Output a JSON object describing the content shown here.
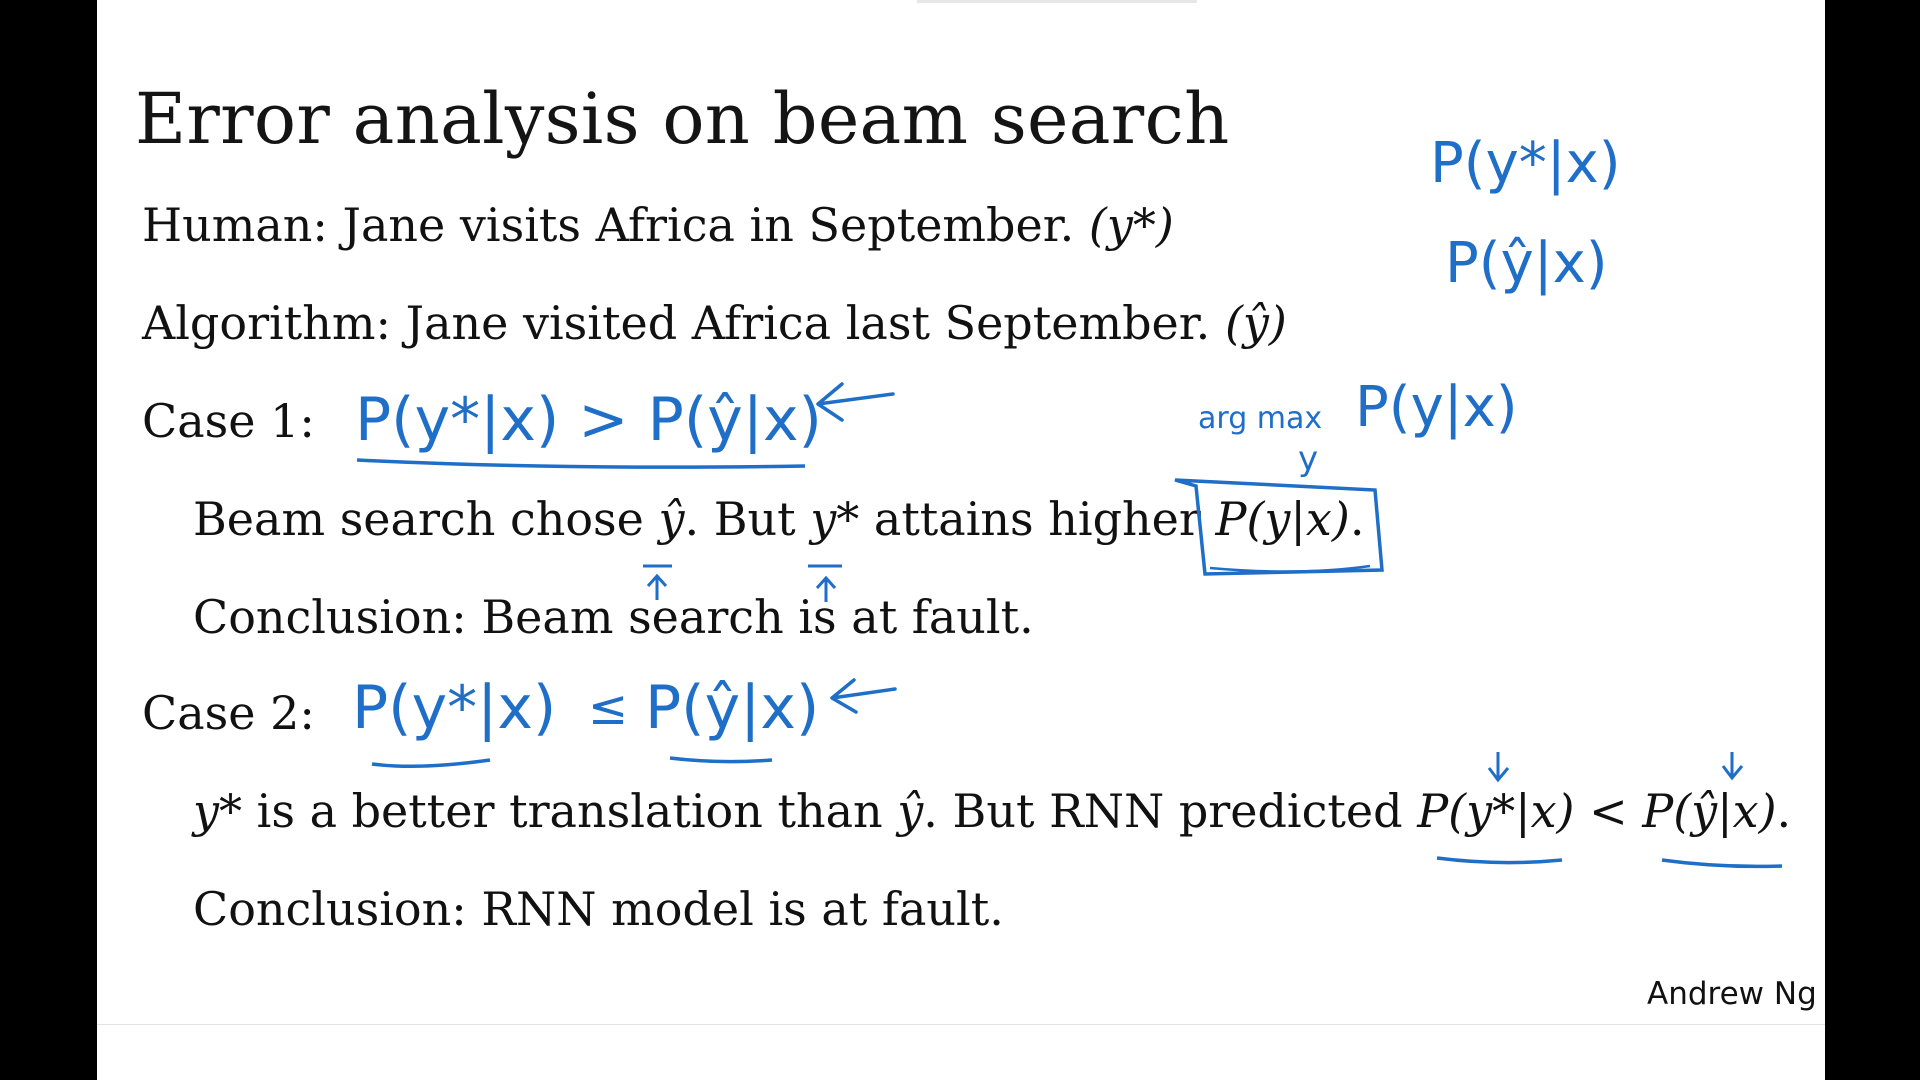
{
  "slide": {
    "title": "Error analysis on beam search",
    "human_label": "Human:",
    "human_sentence": "Jane visits Africa in September.",
    "human_tag": "(y*)",
    "algorithm_label": "Algorithm:",
    "algorithm_sentence": "Jane visited Africa last September.",
    "algorithm_tag": "(ŷ)",
    "case1_label": "Case 1:",
    "case1_text_a": "Beam search chose ",
    "case1_text_yhat": "ŷ",
    "case1_text_b": ". But ",
    "case1_text_ystar": "y*",
    "case1_text_c": " attains higher ",
    "case1_text_p": "P(y|x)",
    "case1_text_end": ".",
    "case1_conclusion": "Conclusion: Beam search is at fault.",
    "case2_label": "Case 2:",
    "case2_text_ystar": "y*",
    "case2_text_a": " is a better translation than ",
    "case2_text_yhat": "ŷ",
    "case2_text_b": ". But RNN predicted ",
    "case2_text_p1": "P(y*|x)",
    "case2_text_lt": " < ",
    "case2_text_p2": "P(ŷ|x)",
    "case2_text_end": ".",
    "case2_conclusion": "Conclusion: RNN model is at fault.",
    "author": "Andrew Ng"
  },
  "annotations": {
    "ink_color": "#1f6ec7",
    "top_right_1": "P(y*|x)",
    "top_right_2": "P(ŷ|x)",
    "argmax_label": "arg max",
    "argmax_sub": "y",
    "argmax_expr": "P(y|x)",
    "case1_handwritten": "P(y*|x) > P(ŷ|x)",
    "case2_handwritten_left": "P(y*|x)",
    "case2_handwritten_op": "≤",
    "case2_handwritten_right": "P(ŷ|x)",
    "arrow_left": "←",
    "arrow_up": "↑",
    "arrow_down": "↓"
  }
}
